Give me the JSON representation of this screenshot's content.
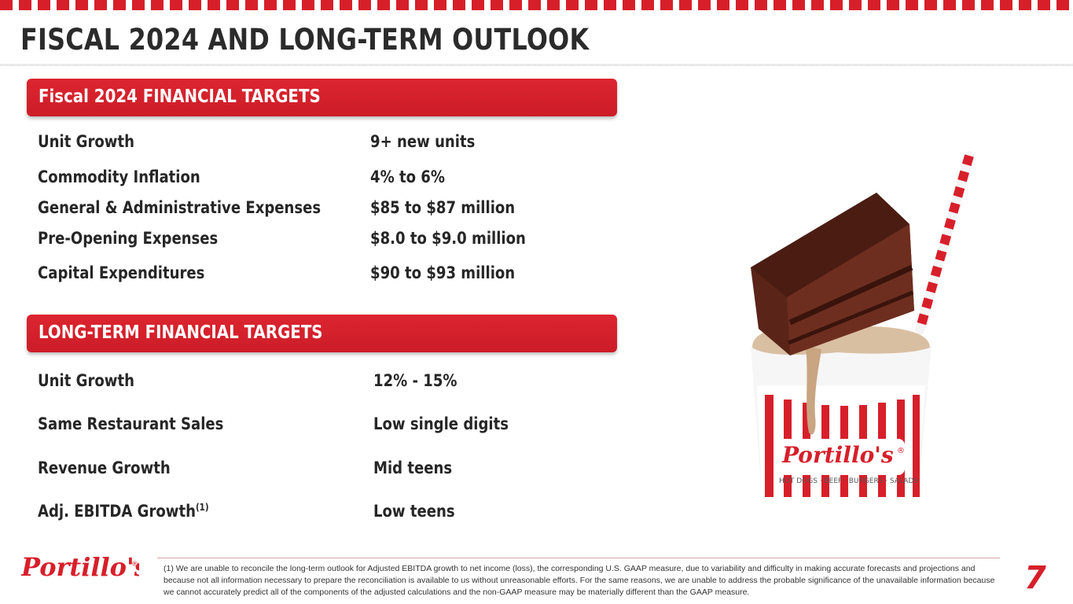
{
  "page": {
    "title": "FISCAL 2024 AND LONG-TERM OUTLOOK",
    "number": "7"
  },
  "colors": {
    "brand_red": "#d71f2a",
    "text_dark": "#262626"
  },
  "fiscal_2024": {
    "header": "Fiscal 2024 FINANCIAL TARGETS",
    "rows": [
      {
        "label": "Unit Growth",
        "value": "9+ new units"
      },
      {
        "label": "Commodity Inflation",
        "value": "4% to 6%"
      },
      {
        "label": "General & Administrative Expenses",
        "value": "$85 to $87 million"
      },
      {
        "label": "Pre-Opening Expenses",
        "value": "$8.0 to $9.0 million"
      },
      {
        "label": "Capital Expenditures",
        "value": "$90 to $93 million"
      }
    ]
  },
  "long_term": {
    "header": "LONG-TERM FINANCIAL TARGETS",
    "rows": [
      {
        "label": "Unit Growth",
        "value": "12% - 15%"
      },
      {
        "label": "Same Restaurant Sales",
        "value": "Low single digits"
      },
      {
        "label": "Revenue Growth",
        "value": "Mid teens"
      },
      {
        "label": "Adj. EBITDA Growth",
        "label_sup": "(1)",
        "value": "Low teens"
      }
    ]
  },
  "image": {
    "cup_logo": "Portillo's",
    "cup_registered": "®",
    "cup_tagline": "HOT DOGS · BEEF · BURGERS · SALADS",
    "icon": "cake-shake-photo"
  },
  "footer": {
    "logo": "Portillo's",
    "logo_registered": "®",
    "footnote": "(1) We are unable to reconcile the long-term outlook for Adjusted EBITDA growth to net income (loss), the corresponding U.S. GAAP measure, due to variability and difficulty in making accurate forecasts and projections and because not all information necessary to prepare the reconciliation is available to us without unreasonable efforts. For the same reasons, we are unable to address the probable significance of the unavailable information because we cannot accurately predict all of the components of the adjusted calculations and the non-GAAP measure may be materially different than the GAAP measure."
  }
}
